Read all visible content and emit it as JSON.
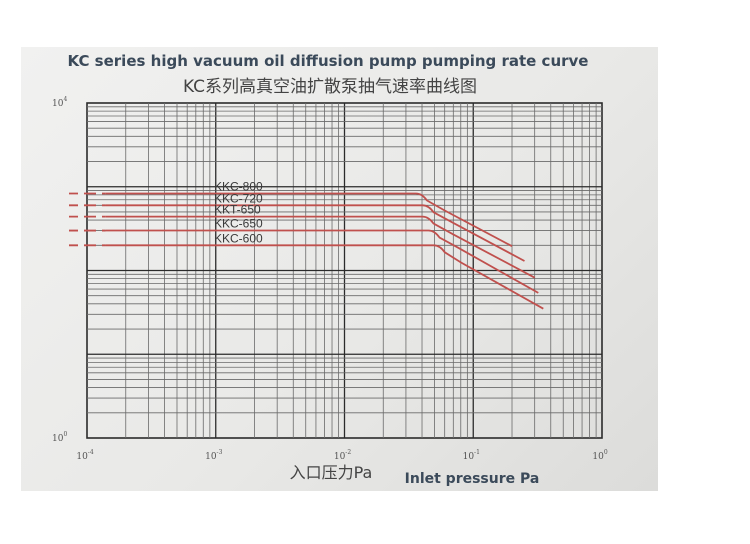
{
  "chart_data": {
    "type": "line",
    "title": "KC series high vacuum oil diffusion pump pumping rate curve",
    "subtitle": "KC系列高真空油扩散泵抽气速率曲线图",
    "xlabel_cn": "入口压力Pa",
    "xlabel_en": "Inlet pressure Pa",
    "ylabel": "",
    "x_scale": "log",
    "y_scale": "log",
    "xlim": [
      0.0001,
      1
    ],
    "ylim": [
      1,
      10000
    ],
    "x_ticks": [
      {
        "base": "10",
        "exp": "-4"
      },
      {
        "base": "10",
        "exp": "-3"
      },
      {
        "base": "10",
        "exp": "-2"
      },
      {
        "base": "10",
        "exp": "-1"
      },
      {
        "base": "10",
        "exp": "0"
      }
    ],
    "y_ticks": [
      {
        "base": "10",
        "exp": "4"
      },
      {
        "base": "10",
        "exp": "0"
      }
    ],
    "grid": true,
    "line_color": "#c0504d",
    "series": [
      {
        "name": "KKC-800",
        "x": [
          0.0001,
          0.00014,
          0.04,
          0.06,
          0.2
        ],
        "y": [
          830,
          830,
          830,
          520,
          195
        ]
      },
      {
        "name": "KKC-720",
        "x": [
          0.0001,
          0.00014,
          0.045,
          0.07,
          0.25
        ],
        "y": [
          600,
          600,
          600,
          370,
          130
        ]
      },
      {
        "name": "KKT-650",
        "x": [
          0.0001,
          0.00014,
          0.045,
          0.07,
          0.3
        ],
        "y": [
          440,
          440,
          440,
          270,
          82
        ]
      },
      {
        "name": "KKC-650",
        "x": [
          0.0001,
          0.00014,
          0.05,
          0.075,
          0.32
        ],
        "y": [
          300,
          300,
          300,
          190,
          54
        ]
      },
      {
        "name": "KKC-600",
        "x": [
          0.0001,
          0.00014,
          0.055,
          0.08,
          0.35
        ],
        "y": [
          200,
          200,
          200,
          125,
          35
        ]
      }
    ]
  }
}
